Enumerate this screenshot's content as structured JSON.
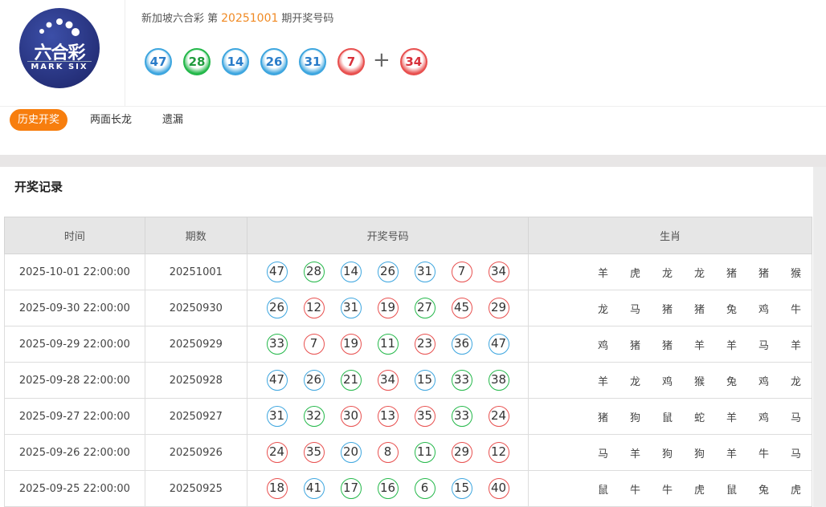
{
  "logo": {
    "cn": "六合彩",
    "en": "MARK SIX"
  },
  "header": {
    "prefix": "新加坡六合彩 第",
    "issue": "20251001",
    "suffix": "期开奖号码",
    "balls": [
      {
        "n": "47",
        "c": "blue"
      },
      {
        "n": "28",
        "c": "green"
      },
      {
        "n": "14",
        "c": "blue"
      },
      {
        "n": "26",
        "c": "blue"
      },
      {
        "n": "31",
        "c": "blue"
      },
      {
        "n": "7",
        "c": "red"
      }
    ],
    "plus": "+",
    "special": {
      "n": "34",
      "c": "red"
    }
  },
  "tabs": [
    {
      "label": "历史开奖",
      "active": true
    },
    {
      "label": "两面长龙"
    },
    {
      "label": "遗漏"
    }
  ],
  "section_title": "开奖记录",
  "colors": {
    "red": "#e8504f",
    "blue": "#3ea6df",
    "green": "#24b84a",
    "accent": "#f77e0e"
  },
  "table": {
    "headers": [
      "时间",
      "期数",
      "开奖号码",
      "生肖"
    ],
    "rows": [
      {
        "time": "2025-10-01 22:00:00",
        "issue": "20251001",
        "nums": [
          "47",
          "28",
          "14",
          "26",
          "31",
          "7",
          "34"
        ],
        "zodiac": [
          "羊",
          "虎",
          "龙",
          "龙",
          "猪",
          "猪",
          "猴"
        ]
      },
      {
        "time": "2025-09-30 22:00:00",
        "issue": "20250930",
        "nums": [
          "26",
          "12",
          "31",
          "19",
          "27",
          "45",
          "29"
        ],
        "zodiac": [
          "龙",
          "马",
          "猪",
          "猪",
          "兔",
          "鸡",
          "牛"
        ]
      },
      {
        "time": "2025-09-29 22:00:00",
        "issue": "20250929",
        "nums": [
          "33",
          "7",
          "19",
          "11",
          "23",
          "36",
          "47"
        ],
        "zodiac": [
          "鸡",
          "猪",
          "猪",
          "羊",
          "羊",
          "马",
          "羊"
        ]
      },
      {
        "time": "2025-09-28 22:00:00",
        "issue": "20250928",
        "nums": [
          "47",
          "26",
          "21",
          "34",
          "15",
          "33",
          "38"
        ],
        "zodiac": [
          "羊",
          "龙",
          "鸡",
          "猴",
          "兔",
          "鸡",
          "龙"
        ]
      },
      {
        "time": "2025-09-27 22:00:00",
        "issue": "20250927",
        "nums": [
          "31",
          "32",
          "30",
          "13",
          "35",
          "33",
          "24"
        ],
        "zodiac": [
          "猪",
          "狗",
          "鼠",
          "蛇",
          "羊",
          "鸡",
          "马"
        ]
      },
      {
        "time": "2025-09-26 22:00:00",
        "issue": "20250926",
        "nums": [
          "24",
          "35",
          "20",
          "8",
          "11",
          "29",
          "12"
        ],
        "zodiac": [
          "马",
          "羊",
          "狗",
          "狗",
          "羊",
          "牛",
          "马"
        ]
      },
      {
        "time": "2025-09-25 22:00:00",
        "issue": "20250925",
        "nums": [
          "18",
          "41",
          "17",
          "16",
          "6",
          "15",
          "40"
        ],
        "zodiac": [
          "鼠",
          "牛",
          "牛",
          "虎",
          "鼠",
          "兔",
          "虎"
        ]
      }
    ]
  }
}
